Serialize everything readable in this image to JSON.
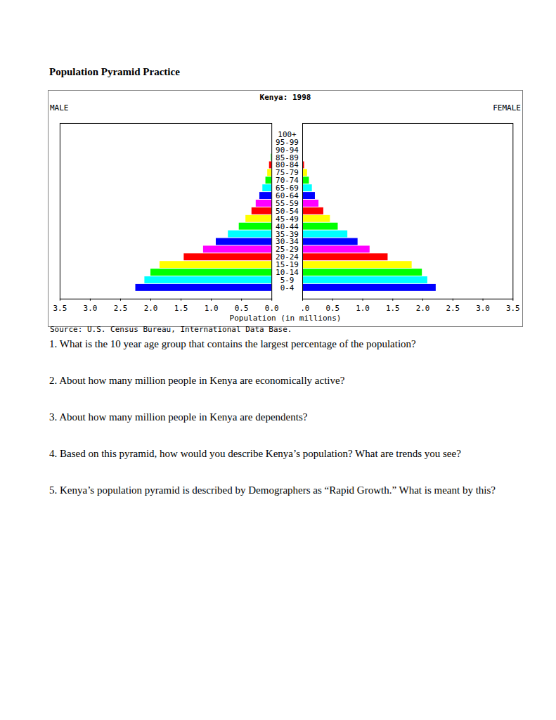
{
  "title": "Population Pyramid Practice",
  "chart_data": {
    "type": "bar",
    "orientation": "horizontal",
    "title": "Kenya: 1998",
    "x_label": "Population (in millions)",
    "source": "Source: U.S. Census Bureau, International Data Base.",
    "categories": [
      "100+",
      "95-99",
      "90-94",
      "85-89",
      "80-84",
      "75-79",
      "70-74",
      "65-69",
      "60-64",
      "55-59",
      "50-54",
      "45-49",
      "40-44",
      "35-39",
      "30-34",
      "25-29",
      "20-24",
      "15-19",
      "10-14",
      "5-9",
      "0-4"
    ],
    "series": [
      {
        "name": "MALE",
        "values": [
          0.0,
          0.0,
          0.0,
          0.01,
          0.04,
          0.07,
          0.1,
          0.15,
          0.2,
          0.26,
          0.33,
          0.43,
          0.54,
          0.72,
          0.92,
          1.13,
          1.45,
          1.85,
          2.0,
          2.1,
          2.25
        ]
      },
      {
        "name": "FEMALE",
        "values": [
          0.0,
          0.0,
          0.0,
          0.01,
          0.03,
          0.08,
          0.11,
          0.16,
          0.21,
          0.27,
          0.35,
          0.46,
          0.59,
          0.75,
          0.92,
          1.12,
          1.42,
          1.82,
          1.99,
          2.08,
          2.22
        ]
      }
    ],
    "colors": [
      "#ff00ff",
      "#ff0000",
      "#ffff00",
      "#00ff00",
      "#ff0000",
      "#ffff00",
      "#00ff00",
      "#00ffff",
      "#0000ff",
      "#ff00ff",
      "#ff0000",
      "#ffff00",
      "#00ff00",
      "#00ffff",
      "#0000ff",
      "#ff00ff",
      "#ff0000",
      "#ffff00",
      "#00ff00",
      "#00ffff",
      "#0000ff"
    ],
    "xlim": [
      0,
      3.5
    ],
    "xticks": [
      {
        "value": 0,
        "label": "0.0"
      },
      0.5,
      {
        "value": 1,
        "label": "1.0"
      },
      1.5,
      {
        "value": 2,
        "label": "2.0"
      },
      2.5,
      {
        "value": 3,
        "label": "3.0"
      },
      3.5
    ],
    "grid": false
  },
  "questions": [
    "1. What is the 10 year age group that contains the largest percentage of the population?",
    "2. About how many million people in Kenya are economically active?",
    "3.  About how many million people in Kenya are dependents?",
    "4. Based on this pyramid, how would you describe Kenya’s population?  What are trends you see?",
    "5.  Kenya’s population pyramid is described by Demographers as “Rapid Growth.”  What is meant by this?"
  ]
}
